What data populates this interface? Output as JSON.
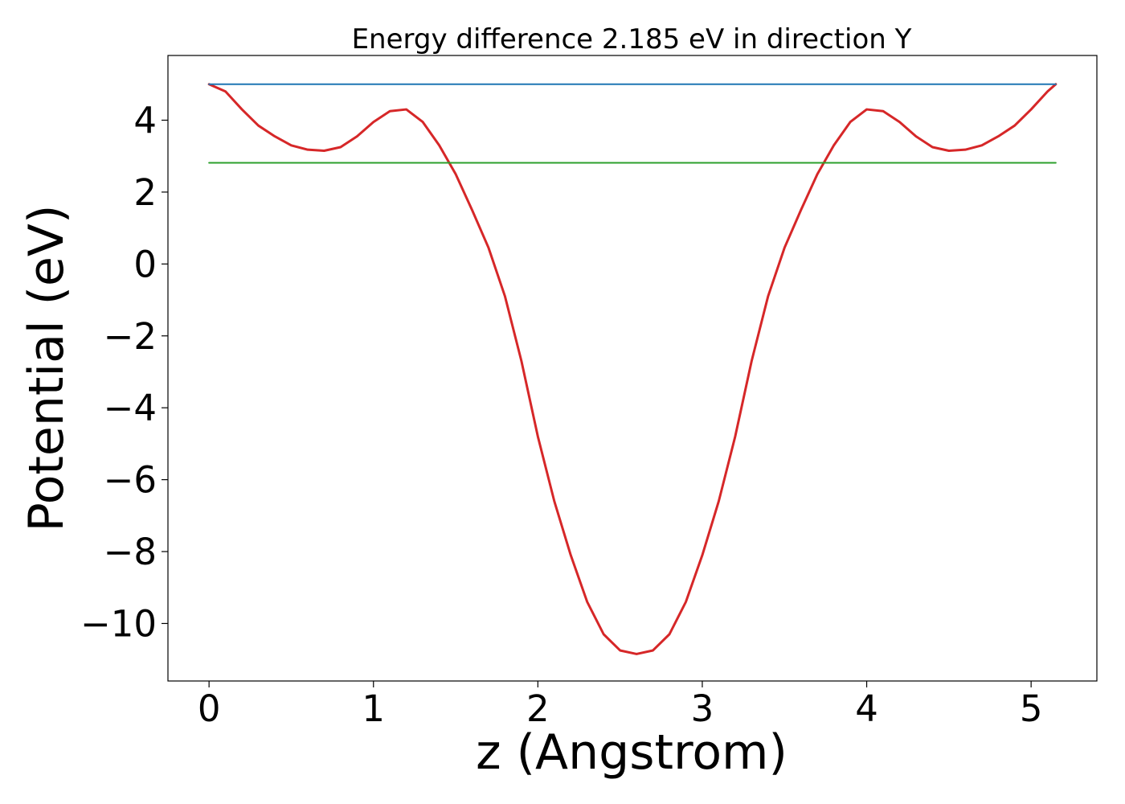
{
  "chart_data": {
    "type": "line",
    "title": "Energy difference 2.185 eV in direction Y",
    "xlabel": "z (Angstrom)",
    "ylabel": "Potential (eV)",
    "xlim": [
      -0.25,
      5.4
    ],
    "ylim": [
      -11.6,
      5.8
    ],
    "xticks": [
      0,
      1,
      2,
      3,
      4,
      5
    ],
    "yticks": [
      4,
      2,
      0,
      -2,
      -4,
      -6,
      -8,
      -10
    ],
    "xtick_labels": [
      "0",
      "1",
      "2",
      "3",
      "4",
      "5"
    ],
    "ytick_labels": [
      "4",
      "2",
      "0",
      "−2",
      "−4",
      "−6",
      "−8",
      "−10"
    ],
    "grid": false,
    "series": [
      {
        "color": "#d62728",
        "x": [
          0,
          0.1,
          0.2,
          0.3,
          0.4,
          0.5,
          0.6,
          0.7,
          0.8,
          0.9,
          1.0,
          1.1,
          1.2,
          1.3,
          1.4,
          1.5,
          1.6,
          1.7,
          1.8,
          1.9,
          2.0,
          2.1,
          2.2,
          2.3,
          2.4,
          2.5,
          2.6,
          2.7,
          2.8,
          2.9,
          3.0,
          3.1,
          3.2,
          3.3,
          3.4,
          3.5,
          3.6,
          3.7,
          3.8,
          3.9,
          4.0,
          4.1,
          4.2,
          4.3,
          4.4,
          4.5,
          4.6,
          4.7,
          4.8,
          4.9,
          5.0,
          5.1,
          5.15
        ],
        "y": [
          5.0,
          4.8,
          4.3,
          3.85,
          3.55,
          3.3,
          3.18,
          3.15,
          3.25,
          3.55,
          3.95,
          4.25,
          4.3,
          3.95,
          3.3,
          2.5,
          1.5,
          0.45,
          -0.9,
          -2.7,
          -4.8,
          -6.6,
          -8.1,
          -9.4,
          -10.3,
          -10.75,
          -10.85,
          -10.75,
          -10.3,
          -9.4,
          -8.1,
          -6.6,
          -4.8,
          -2.7,
          -0.9,
          0.45,
          1.5,
          2.5,
          3.3,
          3.95,
          4.3,
          4.25,
          3.95,
          3.55,
          3.25,
          3.15,
          3.18,
          3.3,
          3.55,
          3.85,
          4.3,
          4.8,
          5.0
        ]
      },
      {
        "color": "#1f77b4",
        "x": [
          0,
          5.15
        ],
        "y": [
          5.0,
          5.0
        ]
      },
      {
        "color": "#2ca02c",
        "x": [
          0,
          5.15
        ],
        "y": [
          2.815,
          2.815
        ]
      }
    ]
  }
}
